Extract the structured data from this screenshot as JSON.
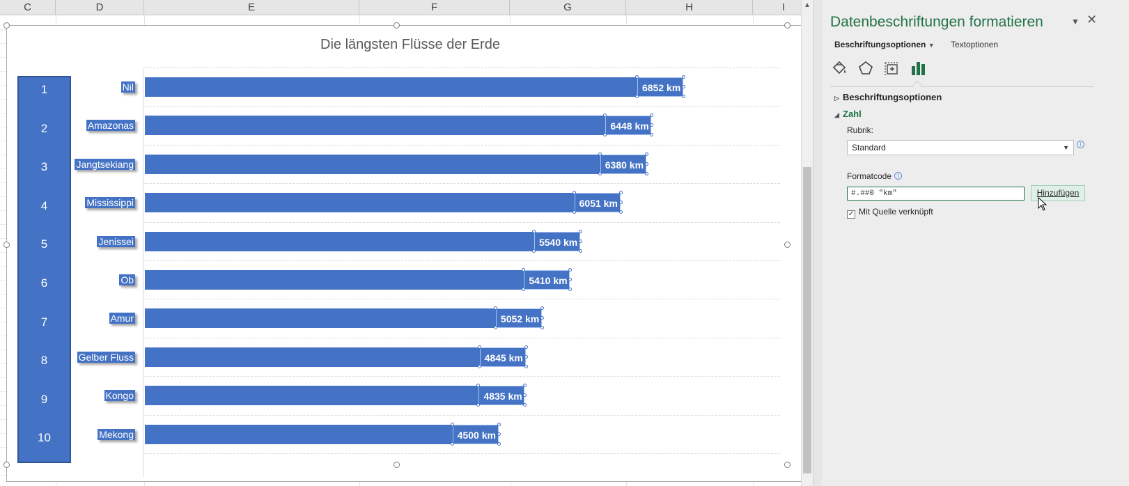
{
  "sheet": {
    "columns": [
      "C",
      "D",
      "E",
      "F",
      "G",
      "H",
      "I"
    ]
  },
  "chart_data": {
    "type": "bar",
    "title": "Die längsten Flüsse der Erde",
    "categories": [
      "Nil",
      "Amazonas",
      "Jangtsekiang",
      "Mississippi",
      "Jenissei",
      "Ob",
      "Amur",
      "Gelber Fluss",
      "Kongo",
      "Mekong"
    ],
    "ranks": [
      "1",
      "2",
      "3",
      "4",
      "5",
      "6",
      "7",
      "8",
      "9",
      "10"
    ],
    "values": [
      6852,
      6448,
      6380,
      6051,
      5540,
      5410,
      5052,
      4845,
      4835,
      4500
    ],
    "data_labels": [
      "6852 km",
      "6448 km",
      "6380 km",
      "6051 km",
      "5540 km",
      "5410 km",
      "5052 km",
      "4845 km",
      "4835 km",
      "4500 km"
    ],
    "xlim": [
      0,
      8000
    ],
    "grid": true,
    "bar_color": "#4472c4"
  },
  "pane": {
    "title": "Datenbeschriftungen formatieren",
    "tab_label_options": "Beschriftungsoptionen",
    "tab_text_options": "Textoptionen",
    "icons": [
      "fill-line-icon",
      "effects-icon",
      "size-properties-icon",
      "label-options-icon"
    ],
    "section_label_options": "Beschriftungsoptionen",
    "section_number": "Zahl",
    "category_label": "Rubrik:",
    "category_value": "Standard",
    "format_code_label": "Formatcode",
    "format_code_value": "#.##0 \"km\"",
    "add_button": "Hinzufügen",
    "link_source_label": "Mit Quelle verknüpft",
    "link_source_checked": true,
    "accent_color": "#217346"
  }
}
